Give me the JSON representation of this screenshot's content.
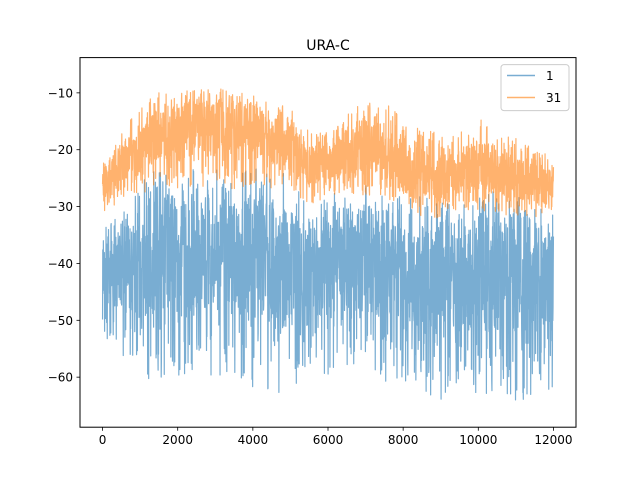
{
  "chart_data": {
    "type": "line",
    "title": "URA-C",
    "xlabel": "",
    "ylabel": "",
    "xlim": [
      -600,
      12600
    ],
    "ylim": [
      -68.8,
      -3.8
    ],
    "xticks": [
      0,
      2000,
      4000,
      6000,
      8000,
      10000,
      12000
    ],
    "xtick_labels": [
      "0",
      "2000",
      "4000",
      "6000",
      "8000",
      "10000",
      "12000"
    ],
    "yticks": [
      -10,
      -20,
      -30,
      -40,
      -50,
      -60
    ],
    "ytick_labels": [
      "−10",
      "−20",
      "−30",
      "−40",
      "−50",
      "−60"
    ],
    "grid": false,
    "legend_position": "top-right",
    "n_points": 12000,
    "series": [
      {
        "name": "1",
        "color": "#1f77b4",
        "alpha": 0.6,
        "x": [
          0,
          500,
          1000,
          1500,
          2000,
          2500,
          3000,
          3500,
          4000,
          4500,
          5000,
          5500,
          6000,
          6500,
          7000,
          7500,
          8000,
          8500,
          9000,
          9500,
          10000,
          10500,
          11000,
          11500,
          12000
        ],
        "upper": [
          -34,
          -30,
          -25,
          -23,
          -25,
          -22,
          -22,
          -25,
          -23,
          -24,
          -24,
          -30,
          -28,
          -27,
          -25,
          -25,
          -28,
          -28,
          -28,
          -30,
          -28,
          -27,
          -28,
          -28,
          -30
        ],
        "lower": [
          -56,
          -57,
          -60,
          -61,
          -60,
          -59,
          -60,
          -61,
          -62,
          -63,
          -63,
          -58,
          -60,
          -58,
          -59,
          -61,
          -62,
          -64,
          -65,
          -64,
          -64,
          -64,
          -64,
          -65,
          -62
        ],
        "center": [
          -44,
          -41,
          -40,
          -38,
          -40,
          -38,
          -38,
          -40,
          -39,
          -40,
          -41,
          -41,
          -42,
          -40,
          -39,
          -40,
          -43,
          -43,
          -42,
          -44,
          -42,
          -42,
          -43,
          -43,
          -43
        ]
      },
      {
        "name": "31",
        "color": "#ff7f0e",
        "alpha": 0.6,
        "x": [
          0,
          500,
          1000,
          1500,
          2000,
          2500,
          3000,
          3500,
          4000,
          4500,
          5000,
          5500,
          6000,
          6500,
          7000,
          7500,
          8000,
          8500,
          9000,
          9500,
          10000,
          10500,
          11000,
          11500,
          12000
        ],
        "upper": [
          -22,
          -17,
          -12,
          -10,
          -10,
          -9,
          -9,
          -10,
          -8,
          -13,
          -11,
          -17,
          -17,
          -13,
          -12,
          -11,
          -15,
          -16,
          -17,
          -17,
          -14,
          -17,
          -18,
          -20,
          -20
        ],
        "lower": [
          -31,
          -29,
          -28,
          -26,
          -27,
          -27,
          -26,
          -27,
          -26,
          -27,
          -27,
          -30,
          -28,
          -28,
          -28,
          -28,
          -31,
          -32,
          -32,
          -31,
          -31,
          -31,
          -32,
          -32,
          -32
        ],
        "center": [
          -26,
          -22,
          -20,
          -17,
          -17,
          -16,
          -16,
          -16,
          -16,
          -19,
          -19,
          -23,
          -22,
          -21,
          -20,
          -20,
          -23,
          -24,
          -25,
          -24,
          -23,
          -24,
          -25,
          -26,
          -26
        ]
      }
    ]
  }
}
